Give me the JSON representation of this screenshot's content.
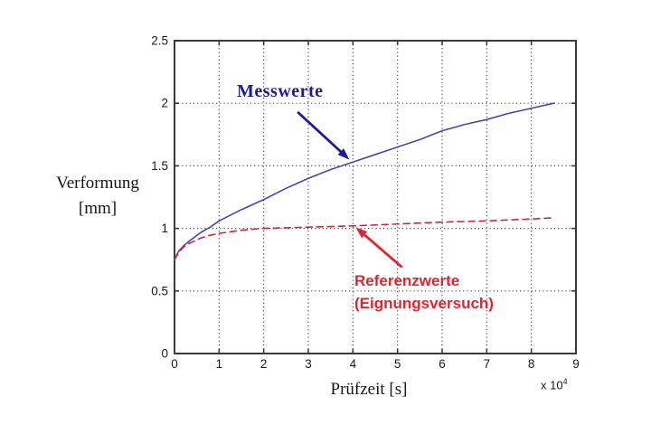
{
  "figure": {
    "background": "#ffffff"
  },
  "chart_data": {
    "type": "line",
    "title": "",
    "xlabel": "Prüfzeit [s]",
    "ylabel_line1": "Verformung",
    "ylabel_line2": "[mm]",
    "x_scale_prefix": "x 10",
    "x_scale_exponent": "4",
    "xlim": [
      0,
      9
    ],
    "ylim": [
      0,
      2.5
    ],
    "xticks": [
      0,
      1,
      2,
      3,
      4,
      5,
      6,
      7,
      8,
      9
    ],
    "yticks": [
      0,
      0.5,
      1,
      1.5,
      2,
      2.5
    ],
    "xtick_labels": [
      "0",
      "1",
      "2",
      "3",
      "4",
      "5",
      "6",
      "7",
      "8",
      "9"
    ],
    "ytick_labels": [
      "0",
      "0.5",
      "1",
      "1.5",
      "2",
      "2.5"
    ],
    "grid": true,
    "grid_style": "dotted",
    "grid_color": "#2b2b2b",
    "axis_color": "#3a3a3a",
    "tick_label_color": "#1a1a1a",
    "legend_position": "none",
    "series": [
      {
        "name": "Messwerte",
        "color": "#4747a8",
        "line_style": "solid",
        "x": [
          0,
          0.05,
          0.1,
          0.2,
          0.3,
          0.45,
          0.6,
          0.8,
          1.0,
          1.5,
          2.0,
          2.5,
          3.0,
          3.5,
          4.0,
          4.5,
          5.0,
          5.5,
          6.0,
          6.5,
          7.0,
          7.5,
          8.0,
          8.5
        ],
        "y": [
          0.75,
          0.79,
          0.82,
          0.86,
          0.89,
          0.93,
          0.97,
          1.01,
          1.06,
          1.15,
          1.23,
          1.32,
          1.4,
          1.47,
          1.53,
          1.59,
          1.65,
          1.71,
          1.78,
          1.83,
          1.87,
          1.92,
          1.96,
          2.0
        ]
      },
      {
        "name": "Referenzwerte (Eignungsversuch)",
        "color": "#cc2936",
        "line_style": "dashed",
        "x": [
          0,
          0.05,
          0.1,
          0.2,
          0.3,
          0.45,
          0.6,
          0.8,
          1.0,
          1.5,
          2.0,
          2.5,
          3.0,
          3.5,
          4.0,
          5.0,
          6.0,
          7.0,
          8.0,
          8.5
        ],
        "y": [
          0.75,
          0.78,
          0.81,
          0.85,
          0.875,
          0.9,
          0.925,
          0.945,
          0.96,
          0.985,
          1.0,
          1.005,
          1.01,
          1.015,
          1.02,
          1.035,
          1.05,
          1.06,
          1.075,
          1.085
        ]
      }
    ],
    "annotations": [
      {
        "text": "Messwerte",
        "color": "#1c1c9a",
        "arrow": {
          "from_x": 2.76,
          "from_y": 1.93,
          "to_x": 3.92,
          "to_y": 1.55
        }
      },
      {
        "text_line1": "Referenzwerte",
        "text_line2": "(Eignungsversuch)",
        "color": "#e02531",
        "arrow": {
          "from_x": 5.1,
          "from_y": 0.69,
          "to_x": 4.06,
          "to_y": 1.01
        }
      }
    ]
  }
}
